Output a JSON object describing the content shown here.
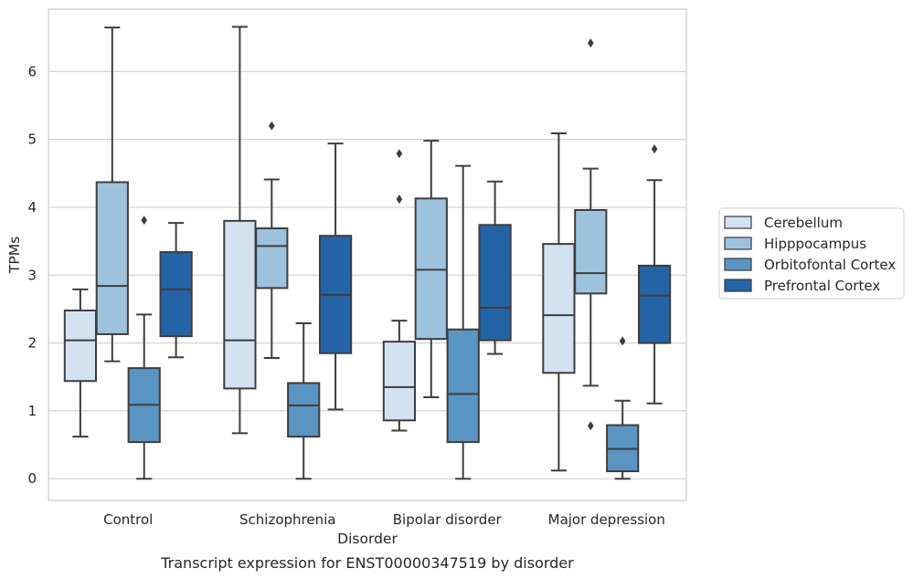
{
  "chart_data": {
    "type": "box",
    "title": "",
    "caption": "Transcript expression for ENST00000347519 by disorder",
    "xlabel": "Disorder",
    "ylabel": "TPMs",
    "ylim": [
      -0.32,
      6.92
    ],
    "yticks": [
      0,
      1,
      2,
      3,
      4,
      5,
      6
    ],
    "grid": "y-major",
    "legend_position": "right",
    "categories": [
      "Control",
      "Schizophrenia",
      "Bipolar disorder",
      "Major depression"
    ],
    "series": [
      {
        "name": "Cerebellum",
        "color": "#d3e2f1",
        "boxes": [
          {
            "whisker_low": 0.62,
            "q1": 1.44,
            "median": 2.04,
            "q3": 2.48,
            "whisker_high": 2.79,
            "outliers": []
          },
          {
            "whisker_low": 0.67,
            "q1": 1.33,
            "median": 2.04,
            "q3": 3.8,
            "whisker_high": 6.66,
            "outliers": []
          },
          {
            "whisker_low": 0.71,
            "q1": 0.86,
            "median": 1.35,
            "q3": 2.02,
            "whisker_high": 2.33,
            "outliers": [
              4.12,
              4.79
            ]
          },
          {
            "whisker_low": 0.12,
            "q1": 1.56,
            "median": 2.41,
            "q3": 3.46,
            "whisker_high": 5.09,
            "outliers": []
          }
        ]
      },
      {
        "name": "Hipppocampus",
        "color": "#9dc2dd",
        "boxes": [
          {
            "whisker_low": 1.73,
            "q1": 2.13,
            "median": 2.84,
            "q3": 4.37,
            "whisker_high": 6.65,
            "outliers": []
          },
          {
            "whisker_low": 1.78,
            "q1": 2.81,
            "median": 3.43,
            "q3": 3.69,
            "whisker_high": 4.41,
            "outliers": [
              5.2
            ]
          },
          {
            "whisker_low": 1.2,
            "q1": 2.06,
            "median": 3.08,
            "q3": 4.13,
            "whisker_high": 4.98,
            "outliers": []
          },
          {
            "whisker_low": 1.37,
            "q1": 2.73,
            "median": 3.03,
            "q3": 3.96,
            "whisker_high": 4.57,
            "outliers": [
              0.78,
              6.42
            ]
          }
        ]
      },
      {
        "name": "Orbitofontal Cortex",
        "color": "#5a94c2",
        "boxes": [
          {
            "whisker_low": 0.0,
            "q1": 0.54,
            "median": 1.09,
            "q3": 1.63,
            "whisker_high": 2.42,
            "outliers": [
              3.81
            ]
          },
          {
            "whisker_low": 0.0,
            "q1": 0.62,
            "median": 1.08,
            "q3": 1.41,
            "whisker_high": 2.29,
            "outliers": []
          },
          {
            "whisker_low": 0.0,
            "q1": 0.54,
            "median": 1.25,
            "q3": 2.2,
            "whisker_high": 4.61,
            "outliers": []
          },
          {
            "whisker_low": 0.0,
            "q1": 0.11,
            "median": 0.44,
            "q3": 0.79,
            "whisker_high": 1.15,
            "outliers": [
              2.03
            ]
          }
        ]
      },
      {
        "name": "Prefrontal Cortex",
        "color": "#2464a6",
        "boxes": [
          {
            "whisker_low": 1.79,
            "q1": 2.1,
            "median": 2.79,
            "q3": 3.34,
            "whisker_high": 3.77,
            "outliers": []
          },
          {
            "whisker_low": 1.02,
            "q1": 1.85,
            "median": 2.71,
            "q3": 3.58,
            "whisker_high": 4.94,
            "outliers": []
          },
          {
            "whisker_low": 1.84,
            "q1": 2.04,
            "median": 2.52,
            "q3": 3.74,
            "whisker_high": 4.38,
            "outliers": []
          },
          {
            "whisker_low": 1.11,
            "q1": 2.0,
            "median": 2.7,
            "q3": 3.14,
            "whisker_high": 4.4,
            "outliers": [
              4.86
            ]
          }
        ]
      }
    ]
  },
  "colors": {
    "grid": "#d4d4d4",
    "spine": "#cccccc",
    "line": "#3d3d3d",
    "text": "#262626"
  }
}
